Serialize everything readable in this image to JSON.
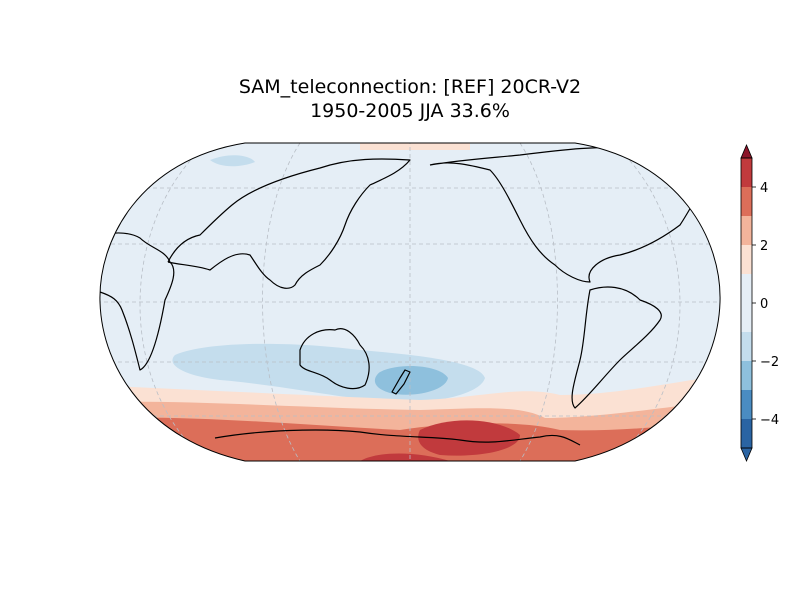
{
  "chart_data": {
    "type": "map",
    "title": [
      "SAM_teleconnection: [REF] 20CR-V2",
      "1950-2005 JJA 33.6%"
    ],
    "projection": "robinson",
    "central_longitude": 180,
    "grid": true,
    "colorbar": {
      "levels": [
        -5,
        -4,
        -3,
        -2,
        -1,
        1,
        2,
        3,
        4,
        5
      ],
      "colors": [
        "#2a64a3",
        "#4a8cc2",
        "#8ec0dd",
        "#c4dded",
        "#e5eef6",
        "#fbe1d3",
        "#f3b49b",
        "#dc6e59",
        "#c13a3d",
        "#8b1429"
      ],
      "extend": "both",
      "ticks": [
        {
          "value": -4,
          "label": "−4"
        },
        {
          "value": -2,
          "label": "−2"
        },
        0,
        2,
        4
      ]
    }
  }
}
